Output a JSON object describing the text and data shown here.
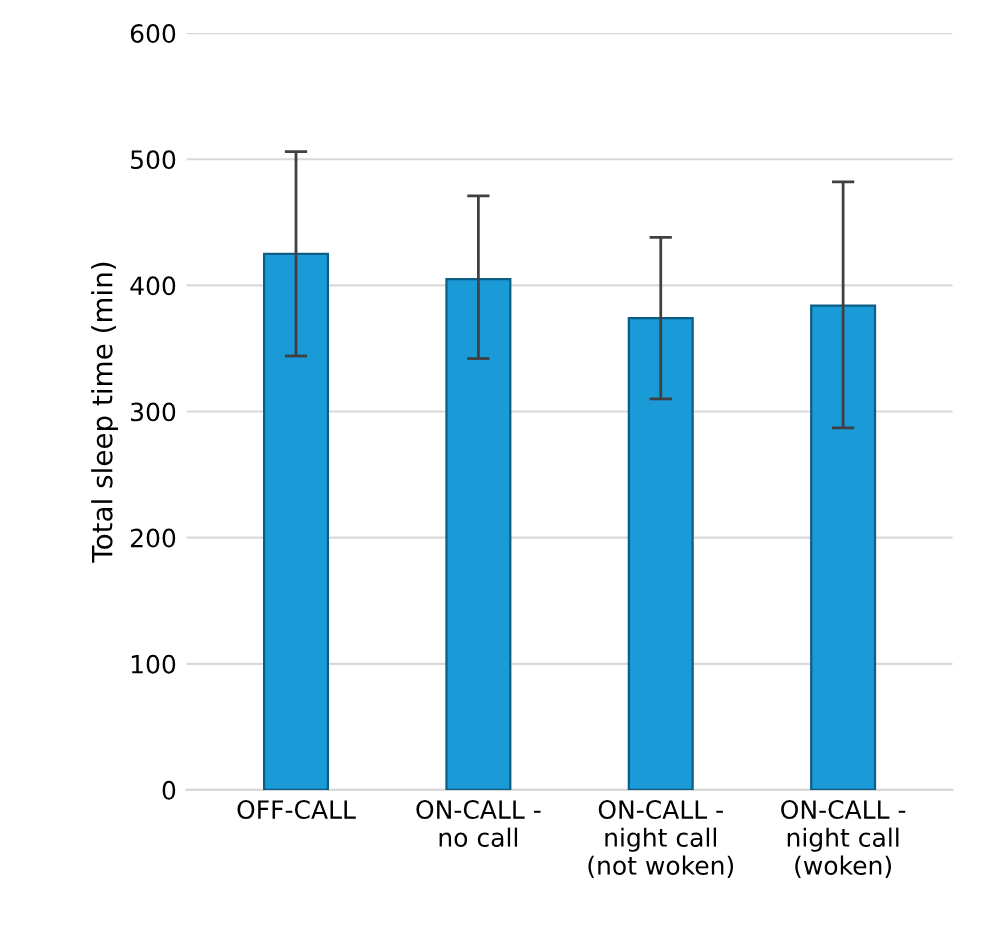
{
  "chart_data": {
    "type": "bar",
    "ylabel": "Total sleep time (min)",
    "categories": [
      "OFF-CALL",
      "ON-CALL -\nno call",
      "ON-CALL -\nnight call\n(not woken)",
      "ON-CALL -\nnight call\n(woken)"
    ],
    "values": [
      425,
      405,
      374,
      384
    ],
    "errors": [
      [
        344,
        506
      ],
      [
        342,
        471
      ],
      [
        310,
        438
      ],
      [
        287,
        482
      ]
    ],
    "color": "#1a9ad6",
    "ylim": [
      0,
      600
    ],
    "yticks": [
      0,
      100,
      200,
      300,
      400,
      500,
      600
    ],
    "grid": "y"
  }
}
